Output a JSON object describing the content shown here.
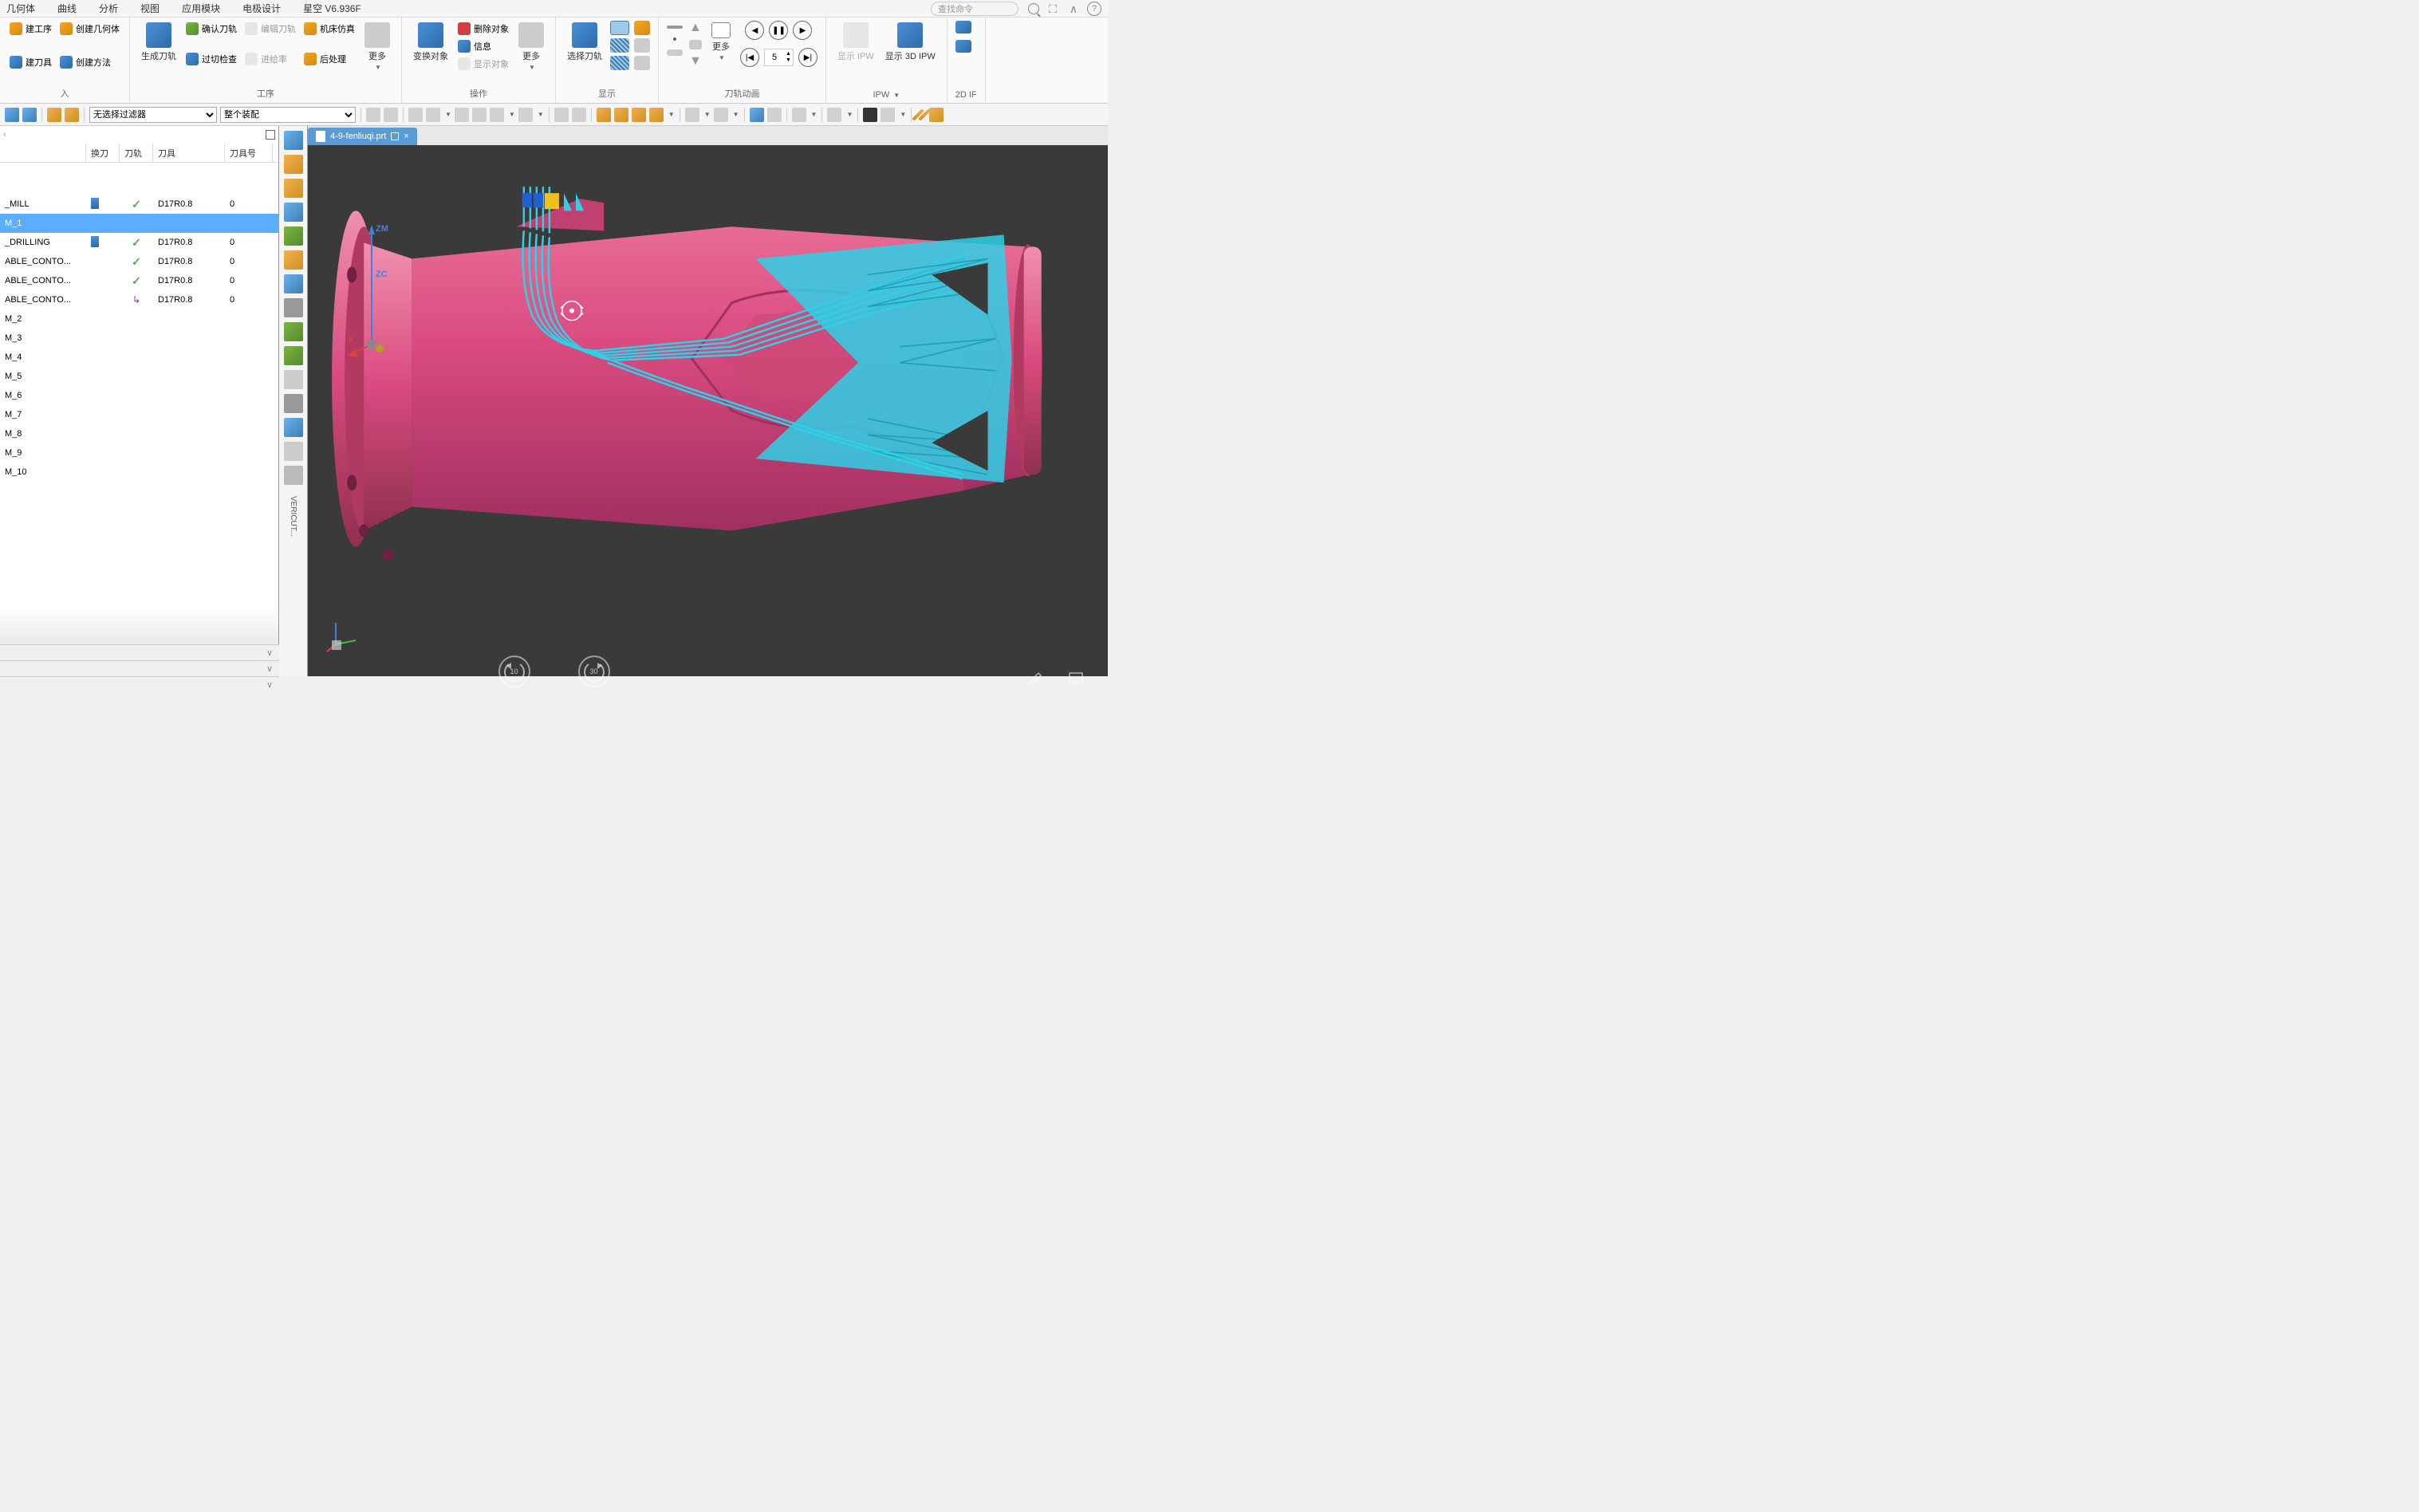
{
  "app_title": "星空 V6.936F",
  "menu": [
    "几何体",
    "曲线",
    "分析",
    "视图",
    "应用模块",
    "电极设计"
  ],
  "search_placeholder": "查找命令",
  "ribbon": {
    "insert": {
      "label": "入",
      "items": {
        "create_process": "建工序",
        "create_tool": "建刀具",
        "create_geom": "创建几何体",
        "create_method": "创建方法"
      }
    },
    "process": {
      "label": "工序",
      "items": {
        "gen_path": "生成刀轨",
        "confirm_path": "确认刀轨",
        "overcut_check": "过切检查",
        "edit_path": "编辑刀轨",
        "feed": "进给率",
        "machine_sim": "机床仿真",
        "post": "后处理",
        "more": "更多"
      }
    },
    "operation": {
      "label": "操作",
      "items": {
        "transform": "变换对象",
        "delete": "删除对象",
        "info": "信息",
        "show": "显示对象",
        "more": "更多"
      }
    },
    "display": {
      "label": "显示",
      "select_path": "选择刀轨"
    },
    "anim": {
      "label": "刀轨动画",
      "speed": "5",
      "more": "更多"
    },
    "ipw": {
      "label": "IPW",
      "show_ipw": "显示 IPW",
      "show_3d_ipw": "显示 3D IPW"
    },
    "ipw2d": {
      "label": "2D IF"
    }
  },
  "toolbar": {
    "filter": "无选择过滤器",
    "assembly": "整个装配"
  },
  "tree": {
    "columns": {
      "change": "换刀",
      "path": "刀轨",
      "tool": "刀具",
      "num": "刀具号"
    },
    "rows": [
      {
        "name": "_MILL",
        "tool_icon": true,
        "check": true,
        "tool": "D17R0.8",
        "num": "0",
        "spacer_before": true
      },
      {
        "name": "M_1",
        "selected": true
      },
      {
        "name": "_DRILLING",
        "tool_icon": true,
        "check": true,
        "tool": "D17R0.8",
        "num": "0"
      },
      {
        "name": "ABLE_CONTO...",
        "check": true,
        "tool": "D17R0.8",
        "num": "0"
      },
      {
        "name": "ABLE_CONTO...",
        "check": true,
        "tool": "D17R0.8",
        "num": "0"
      },
      {
        "name": "ABLE_CONTO...",
        "arrow": true,
        "tool": "D17R0.8",
        "num": "0"
      },
      {
        "name": "M_2"
      },
      {
        "name": "M_3"
      },
      {
        "name": "M_4"
      },
      {
        "name": "M_5"
      },
      {
        "name": "M_6"
      },
      {
        "name": "M_7"
      },
      {
        "name": "M_8"
      },
      {
        "name": "M_9"
      },
      {
        "name": "M_10"
      }
    ]
  },
  "tab": {
    "filename": "4-9-fenliuqi.prt"
  },
  "resource_text": "VERICUT...",
  "viewport": {
    "bg_color": "#3a3a3a",
    "part_color": "#d94a7e",
    "part_highlight": "#e86b96",
    "part_shadow": "#a03060",
    "toolpath_color": "#2ed0e6",
    "axis_z": "ZM",
    "axis_zc": "ZC",
    "axis_x": "X"
  },
  "video": {
    "back": "10",
    "forward": "30"
  }
}
